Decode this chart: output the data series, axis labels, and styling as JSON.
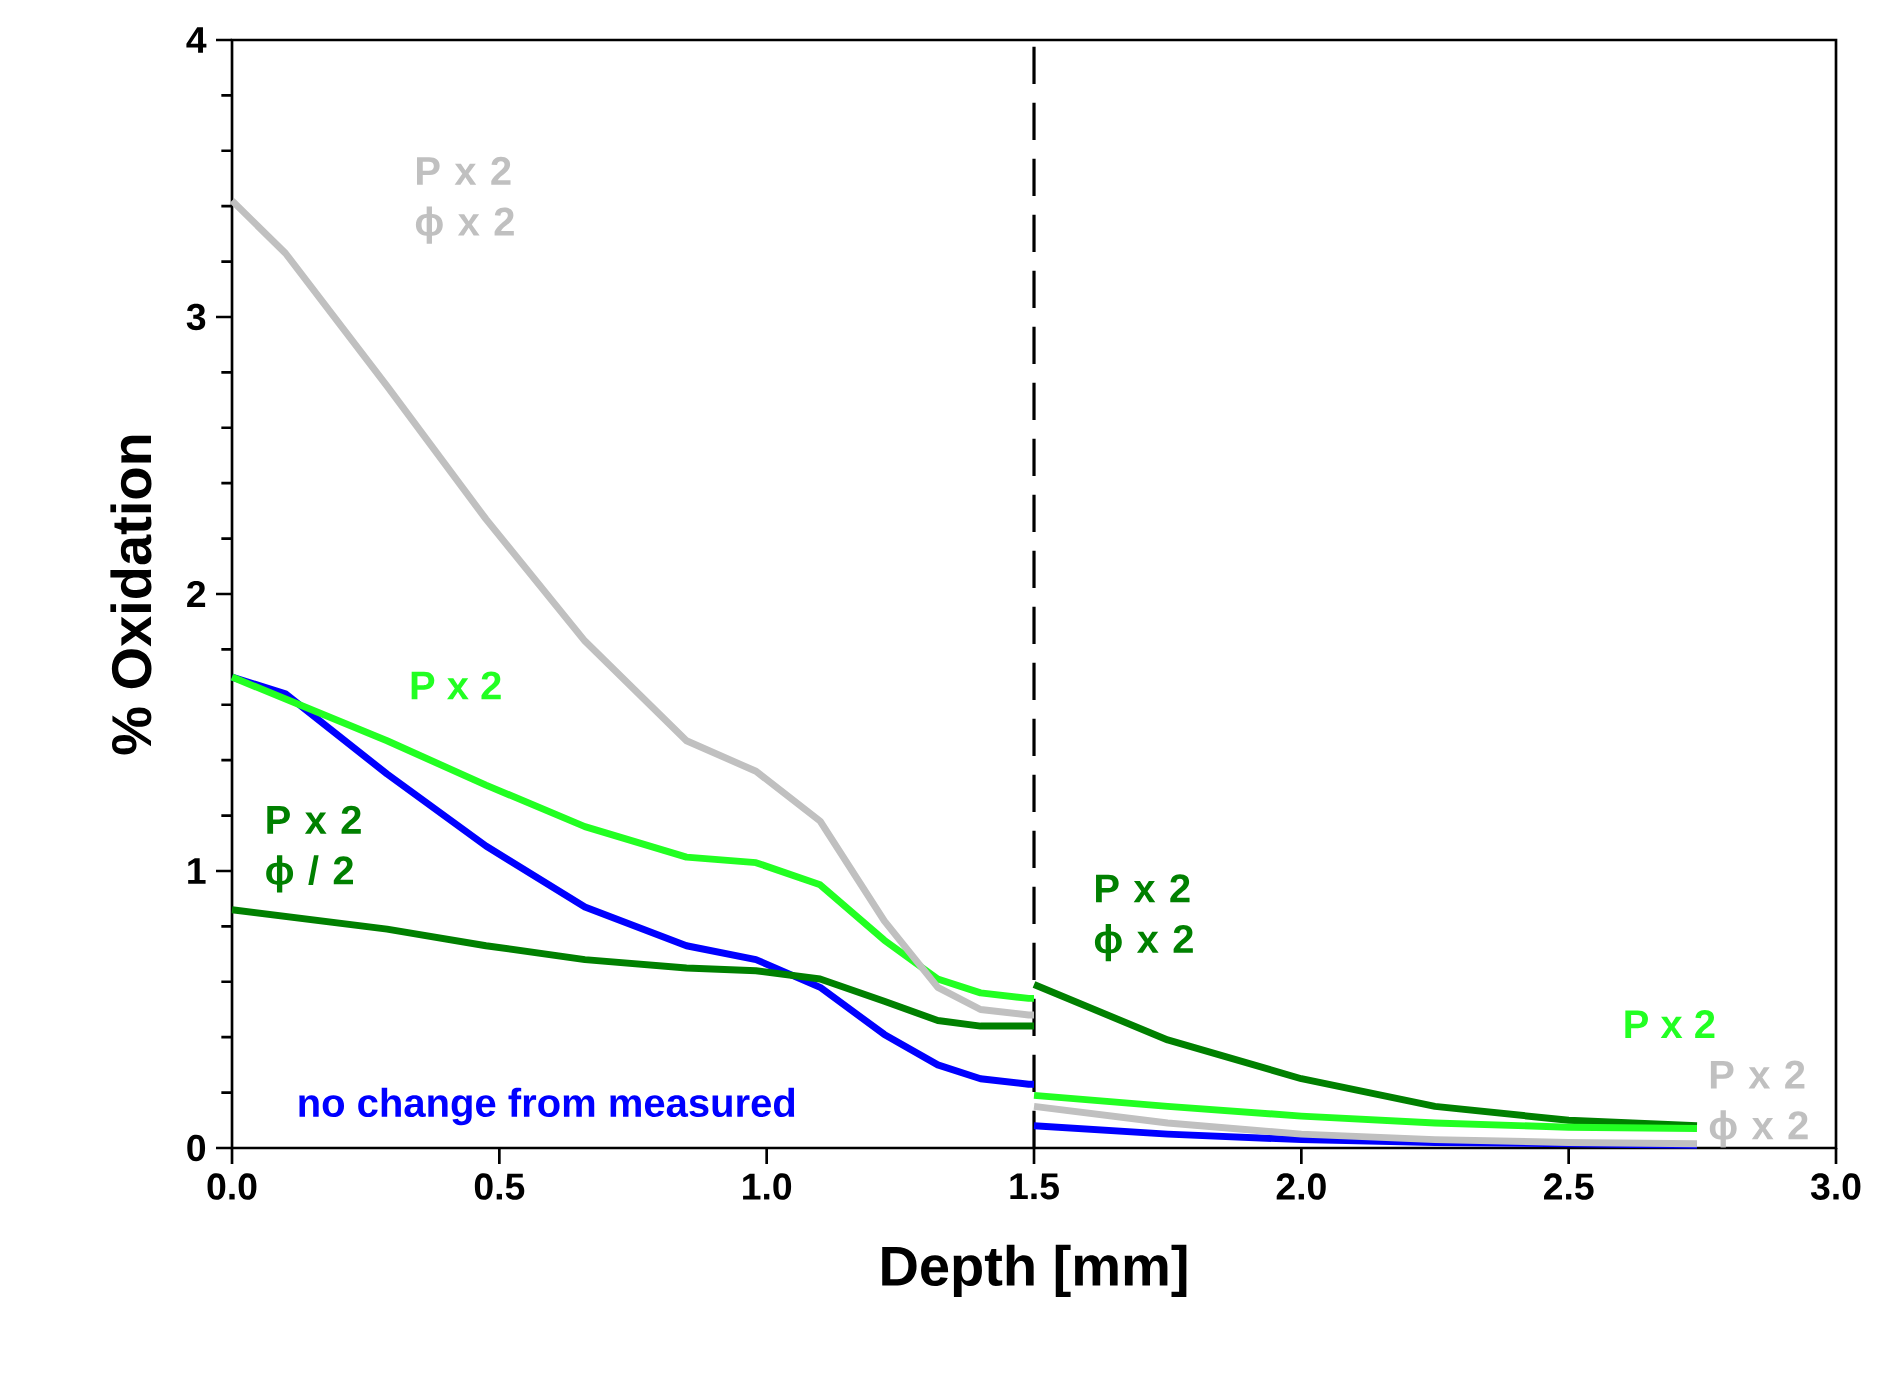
{
  "chart_data": {
    "type": "line",
    "xlabel": "Depth [mm]",
    "ylabel": "% Oxidation",
    "xlim": [
      0,
      3
    ],
    "ylim": [
      0,
      4
    ],
    "xticks": [
      {
        "value": 0,
        "label": "0.0"
      },
      {
        "value": 0.5,
        "label": "0.5"
      },
      {
        "value": 1,
        "label": "1.0"
      },
      {
        "value": 1.5,
        "label": "1.5"
      },
      {
        "value": 2,
        "label": "2.0"
      },
      {
        "value": 2.5,
        "label": "2.5"
      },
      {
        "value": 3,
        "label": "3.0"
      }
    ],
    "yticks": [
      0,
      1,
      2,
      3,
      4
    ],
    "marker": "none",
    "line_style": "solid",
    "ref_lines": [
      {
        "axis": "x",
        "value": 1.5,
        "color": "#000000",
        "line_style": "dashed"
      }
    ],
    "series": [
      {
        "name": "no change from measured",
        "color": "#0000ff",
        "x": [
          0,
          0.1,
          0.29,
          0.475,
          0.66,
          0.85,
          0.98,
          1.1,
          1.22,
          1.32,
          1.4,
          1.49,
          1.5
        ],
        "values": [
          1.7,
          1.64,
          1.35,
          1.09,
          0.87,
          0.73,
          0.68,
          0.58,
          0.41,
          0.3,
          0.25,
          0.23,
          0.23
        ]
      },
      {
        "name": "P x 2",
        "color": "#22ff22",
        "x": [
          0,
          0.29,
          0.475,
          0.66,
          0.85,
          0.98,
          1.1,
          1.22,
          1.32,
          1.4,
          1.49,
          1.5
        ],
        "values": [
          1.7,
          1.47,
          1.31,
          1.16,
          1.05,
          1.03,
          0.95,
          0.75,
          0.61,
          0.56,
          0.54,
          0.54
        ]
      },
      {
        "name": "P x 2 ϕ / 2",
        "color": "#008000",
        "x": [
          0,
          0.29,
          0.475,
          0.66,
          0.85,
          0.98,
          1.1,
          1.22,
          1.32,
          1.4,
          1.49,
          1.5
        ],
        "values": [
          0.86,
          0.79,
          0.73,
          0.68,
          0.65,
          0.64,
          0.61,
          0.53,
          0.46,
          0.44,
          0.44,
          0.44
        ]
      },
      {
        "name": "P x 2 ϕ x 2",
        "color": "#c0c0c0",
        "x": [
          0,
          0.1,
          0.29,
          0.475,
          0.66,
          0.85,
          0.98,
          1.1,
          1.22,
          1.32,
          1.4,
          1.49,
          1.5
        ],
        "values": [
          3.42,
          3.23,
          2.75,
          2.27,
          1.83,
          1.47,
          1.36,
          1.18,
          0.82,
          0.58,
          0.5,
          0.48,
          0.48
        ]
      },
      {
        "color": "#0000ff",
        "x": [
          1.5,
          1.75,
          2.0,
          2.25,
          2.5,
          2.74
        ],
        "values": [
          0.08,
          0.05,
          0.03,
          0.02,
          0.015,
          0.01
        ]
      },
      {
        "name": "P x 2 ϕ x 2",
        "color": "#008000",
        "x": [
          1.5,
          1.75,
          2.0,
          2.25,
          2.5,
          2.74
        ],
        "values": [
          0.59,
          0.39,
          0.25,
          0.15,
          0.1,
          0.08
        ]
      },
      {
        "name": "P x 2 ϕ x 2",
        "color": "#c0c0c0",
        "x": [
          1.5,
          1.75,
          2.0,
          2.25,
          2.5,
          2.74
        ],
        "values": [
          0.15,
          0.09,
          0.05,
          0.03,
          0.02,
          0.015
        ]
      },
      {
        "name": "P x 2",
        "color": "#22ff22",
        "x": [
          1.5,
          1.75,
          2.0,
          2.25,
          2.5,
          2.74
        ],
        "values": [
          0.19,
          0.15,
          0.115,
          0.09,
          0.075,
          0.07
        ]
      }
    ]
  }
}
